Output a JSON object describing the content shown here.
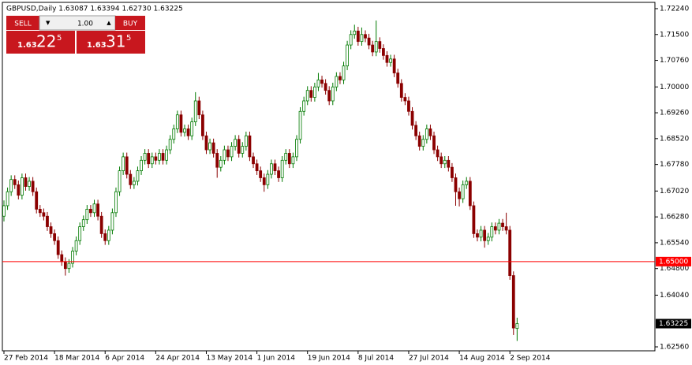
{
  "chart_data": {
    "type": "candlestick",
    "title": "GBPUSD,Daily  1.63087 1.63394 1.62730 1.63225",
    "categories": [
      "27 Feb 2014",
      null,
      null,
      null,
      null,
      null,
      null,
      null,
      null,
      null,
      null,
      null,
      null,
      null,
      "18 Mar 2014",
      null,
      null,
      null,
      null,
      null,
      null,
      null,
      null,
      null,
      null,
      null,
      null,
      null,
      "6 Apr 2014",
      null,
      null,
      null,
      null,
      null,
      null,
      null,
      null,
      null,
      null,
      null,
      null,
      null,
      "24 Apr 2014",
      null,
      null,
      null,
      null,
      null,
      null,
      null,
      null,
      null,
      null,
      null,
      null,
      null,
      "13 May 2014",
      null,
      null,
      null,
      null,
      null,
      null,
      null,
      null,
      null,
      null,
      null,
      null,
      null,
      "1 Jun 2014",
      null,
      null,
      null,
      null,
      null,
      null,
      null,
      null,
      null,
      null,
      null,
      null,
      null,
      "19 Jun 2014",
      null,
      null,
      null,
      null,
      null,
      null,
      null,
      null,
      null,
      null,
      null,
      null,
      null,
      "8 Jul 2014",
      null,
      null,
      null,
      null,
      null,
      null,
      null,
      null,
      null,
      null,
      null,
      null,
      null,
      "27 Jul 2014",
      null,
      null,
      null,
      null,
      null,
      null,
      null,
      null,
      null,
      null,
      null,
      null,
      null,
      "14 Aug 2014",
      null,
      null,
      null,
      null,
      null,
      null,
      null,
      null,
      null,
      null,
      null,
      null,
      null,
      "2 Sep 2014",
      null,
      null
    ],
    "open": [
      1.663,
      1.666,
      1.67,
      1.6735,
      1.672,
      1.669,
      1.674,
      1.6715,
      1.673,
      1.67,
      1.665,
      1.664,
      1.663,
      1.66,
      1.658,
      1.656,
      1.652,
      1.65,
      1.648,
      1.6495,
      1.653,
      1.656,
      1.66,
      1.662,
      1.665,
      1.664,
      1.6665,
      1.663,
      1.658,
      1.656,
      1.659,
      1.664,
      1.67,
      1.676,
      1.68,
      1.675,
      1.672,
      1.673,
      1.676,
      1.679,
      1.681,
      1.678,
      1.68,
      1.679,
      1.681,
      1.679,
      1.682,
      1.685,
      1.688,
      1.692,
      1.687,
      1.688,
      1.686,
      1.69,
      1.696,
      1.692,
      1.686,
      1.682,
      1.684,
      1.681,
      1.677,
      1.679,
      1.682,
      1.68,
      1.683,
      1.685,
      1.681,
      1.683,
      1.686,
      1.68,
      1.678,
      1.676,
      1.674,
      1.672,
      1.675,
      1.678,
      1.676,
      1.674,
      1.679,
      1.681,
      1.678,
      1.68,
      1.685,
      1.693,
      1.696,
      1.699,
      1.697,
      1.7,
      1.702,
      1.701,
      1.699,
      1.696,
      1.7,
      1.703,
      1.702,
      1.706,
      1.712,
      1.715,
      1.716,
      1.713,
      1.715,
      1.714,
      1.712,
      1.71,
      1.713,
      1.711,
      1.709,
      1.707,
      1.708,
      1.704,
      1.701,
      1.697,
      1.696,
      1.693,
      1.689,
      1.686,
      1.683,
      1.685,
      1.688,
      1.686,
      1.682,
      1.68,
      1.678,
      1.679,
      1.677,
      1.674,
      1.67,
      1.668,
      1.672,
      1.673,
      1.666,
      1.658,
      1.657,
      1.659,
      1.656,
      1.657,
      1.66,
      1.659,
      1.661,
      1.66,
      1.659,
      1.646,
      1.63087
    ],
    "high": [
      1.6675,
      1.6712,
      1.6747,
      1.6747,
      1.6732,
      1.6752,
      1.6752,
      1.6742,
      1.6742,
      1.6712,
      1.6662,
      1.6652,
      1.6642,
      1.6612,
      1.6592,
      1.6572,
      1.6532,
      1.6512,
      1.6507,
      1.6542,
      1.6572,
      1.6612,
      1.6632,
      1.6662,
      1.6662,
      1.6677,
      1.6677,
      1.6642,
      1.6592,
      1.6602,
      1.6652,
      1.6712,
      1.6772,
      1.6812,
      1.6812,
      1.6762,
      1.6742,
      1.6772,
      1.6802,
      1.6822,
      1.6822,
      1.6812,
      1.6812,
      1.6822,
      1.6822,
      1.6832,
      1.6862,
      1.6892,
      1.6932,
      1.6932,
      1.6892,
      1.6892,
      1.6912,
      1.6985,
      1.6972,
      1.6932,
      1.6872,
      1.6852,
      1.6852,
      1.6822,
      1.6802,
      1.6832,
      1.6832,
      1.6842,
      1.6862,
      1.6862,
      1.6842,
      1.6872,
      1.6872,
      1.6812,
      1.6792,
      1.6772,
      1.6752,
      1.6762,
      1.6792,
      1.6792,
      1.6772,
      1.6802,
      1.6822,
      1.6822,
      1.6812,
      1.6862,
      1.6942,
      1.6972,
      1.7002,
      1.7002,
      1.7012,
      1.704,
      1.7032,
      1.7022,
      1.7002,
      1.7012,
      1.7042,
      1.7042,
      1.7072,
      1.7132,
      1.7162,
      1.7178,
      1.7172,
      1.717,
      1.7162,
      1.7152,
      1.7132,
      1.719,
      1.7142,
      1.7122,
      1.7102,
      1.7092,
      1.7092,
      1.7052,
      1.7022,
      1.6982,
      1.6972,
      1.6942,
      1.6902,
      1.6872,
      1.6862,
      1.6892,
      1.6892,
      1.6872,
      1.6832,
      1.6812,
      1.6802,
      1.6802,
      1.6782,
      1.6752,
      1.6712,
      1.6732,
      1.6742,
      1.6742,
      1.6672,
      1.6592,
      1.6602,
      1.6602,
      1.6582,
      1.6612,
      1.6612,
      1.6622,
      1.6622,
      1.664,
      1.6602,
      1.6472,
      1.63394
    ],
    "low": [
      1.6615,
      1.6648,
      1.6688,
      1.6708,
      1.6678,
      1.6678,
      1.6703,
      1.6703,
      1.6688,
      1.6638,
      1.6628,
      1.6618,
      1.6588,
      1.6568,
      1.6548,
      1.6508,
      1.6488,
      1.646,
      1.6468,
      1.6483,
      1.6518,
      1.6548,
      1.6588,
      1.6608,
      1.6628,
      1.6628,
      1.6618,
      1.6568,
      1.6548,
      1.6548,
      1.6578,
      1.6628,
      1.6688,
      1.6748,
      1.6738,
      1.6708,
      1.6708,
      1.6718,
      1.6748,
      1.6778,
      1.6768,
      1.6768,
      1.6778,
      1.6778,
      1.6778,
      1.6778,
      1.6808,
      1.6838,
      1.6868,
      1.6858,
      1.6858,
      1.6848,
      1.6848,
      1.6888,
      1.6908,
      1.6848,
      1.6808,
      1.6808,
      1.6798,
      1.674,
      1.6758,
      1.6778,
      1.6788,
      1.6788,
      1.6818,
      1.6798,
      1.6798,
      1.6818,
      1.6788,
      1.6768,
      1.6748,
      1.6728,
      1.67,
      1.6708,
      1.6738,
      1.6748,
      1.6728,
      1.6728,
      1.6778,
      1.6768,
      1.6768,
      1.6788,
      1.6838,
      1.6918,
      1.6948,
      1.6958,
      1.6958,
      1.6988,
      1.6998,
      1.6978,
      1.6948,
      1.6948,
      1.6988,
      1.7008,
      1.7008,
      1.7048,
      1.7108,
      1.7138,
      1.7118,
      1.7118,
      1.7128,
      1.7108,
      1.7088,
      1.7088,
      1.7098,
      1.7078,
      1.7058,
      1.7058,
      1.7028,
      1.6998,
      1.6958,
      1.6948,
      1.6918,
      1.6878,
      1.6848,
      1.6818,
      1.6818,
      1.6838,
      1.6848,
      1.6808,
      1.6788,
      1.6768,
      1.6768,
      1.6758,
      1.6728,
      1.666,
      1.6658,
      1.6668,
      1.6708,
      1.6648,
      1.6568,
      1.6558,
      1.6558,
      1.654,
      1.6548,
      1.6558,
      1.6578,
      1.6578,
      1.6588,
      1.6578,
      1.6448,
      1.629,
      1.6273
    ],
    "close": [
      1.666,
      1.67,
      1.6735,
      1.672,
      1.669,
      1.674,
      1.6715,
      1.673,
      1.67,
      1.665,
      1.664,
      1.663,
      1.66,
      1.658,
      1.656,
      1.652,
      1.65,
      1.648,
      1.6495,
      1.653,
      1.656,
      1.66,
      1.662,
      1.665,
      1.664,
      1.6665,
      1.663,
      1.658,
      1.656,
      1.659,
      1.664,
      1.67,
      1.676,
      1.68,
      1.675,
      1.672,
      1.673,
      1.676,
      1.679,
      1.681,
      1.678,
      1.68,
      1.679,
      1.681,
      1.679,
      1.682,
      1.685,
      1.688,
      1.692,
      1.687,
      1.688,
      1.686,
      1.69,
      1.696,
      1.692,
      1.686,
      1.682,
      1.684,
      1.681,
      1.677,
      1.679,
      1.682,
      1.68,
      1.683,
      1.685,
      1.681,
      1.683,
      1.686,
      1.68,
      1.678,
      1.676,
      1.674,
      1.672,
      1.675,
      1.678,
      1.676,
      1.674,
      1.679,
      1.681,
      1.678,
      1.68,
      1.685,
      1.693,
      1.696,
      1.699,
      1.697,
      1.7,
      1.702,
      1.701,
      1.699,
      1.696,
      1.7,
      1.703,
      1.702,
      1.706,
      1.712,
      1.715,
      1.716,
      1.713,
      1.715,
      1.714,
      1.712,
      1.71,
      1.713,
      1.711,
      1.709,
      1.707,
      1.708,
      1.704,
      1.701,
      1.697,
      1.696,
      1.693,
      1.689,
      1.686,
      1.683,
      1.685,
      1.688,
      1.686,
      1.682,
      1.68,
      1.678,
      1.679,
      1.677,
      1.674,
      1.67,
      1.668,
      1.672,
      1.673,
      1.666,
      1.658,
      1.657,
      1.659,
      1.656,
      1.657,
      1.66,
      1.659,
      1.661,
      1.66,
      1.659,
      1.646,
      1.631,
      1.63225
    ],
    "up_color": "#007a00",
    "down_color": "#8b0000",
    "ylim": [
      1.62447,
      1.7242
    ],
    "yticks": [
      {
        "value": 1.7224,
        "label": "1.72240"
      },
      {
        "value": 1.715,
        "label": "1.71500"
      },
      {
        "value": 1.7076,
        "label": "1.70760"
      },
      {
        "value": 1.7,
        "label": "1.70000"
      },
      {
        "value": 1.6926,
        "label": "1.69260"
      },
      {
        "value": 1.6852,
        "label": "1.68520"
      },
      {
        "value": 1.6778,
        "label": "1.67780"
      },
      {
        "value": 1.6702,
        "label": "1.67020"
      },
      {
        "value": 1.6628,
        "label": "1.66280"
      },
      {
        "value": 1.6554,
        "label": "1.65540"
      },
      {
        "value": 1.648,
        "label": "1.64800"
      },
      {
        "value": 1.6404,
        "label": "1.64040"
      },
      {
        "value": 1.6256,
        "label": "1.62560"
      }
    ],
    "hline": {
      "value": 1.65,
      "label": "1.65000",
      "color": "#ff0000"
    },
    "current_price": {
      "value": 1.63225,
      "label": "1.63225"
    },
    "trade_panel": {
      "sell": "SELL",
      "lots": "1.00",
      "buy": "BUY",
      "sell_price": {
        "big": "1.63",
        "pips": "22",
        "frac": "5"
      },
      "buy_price": {
        "big": "1.63",
        "pips": "31",
        "frac": "5"
      }
    }
  }
}
